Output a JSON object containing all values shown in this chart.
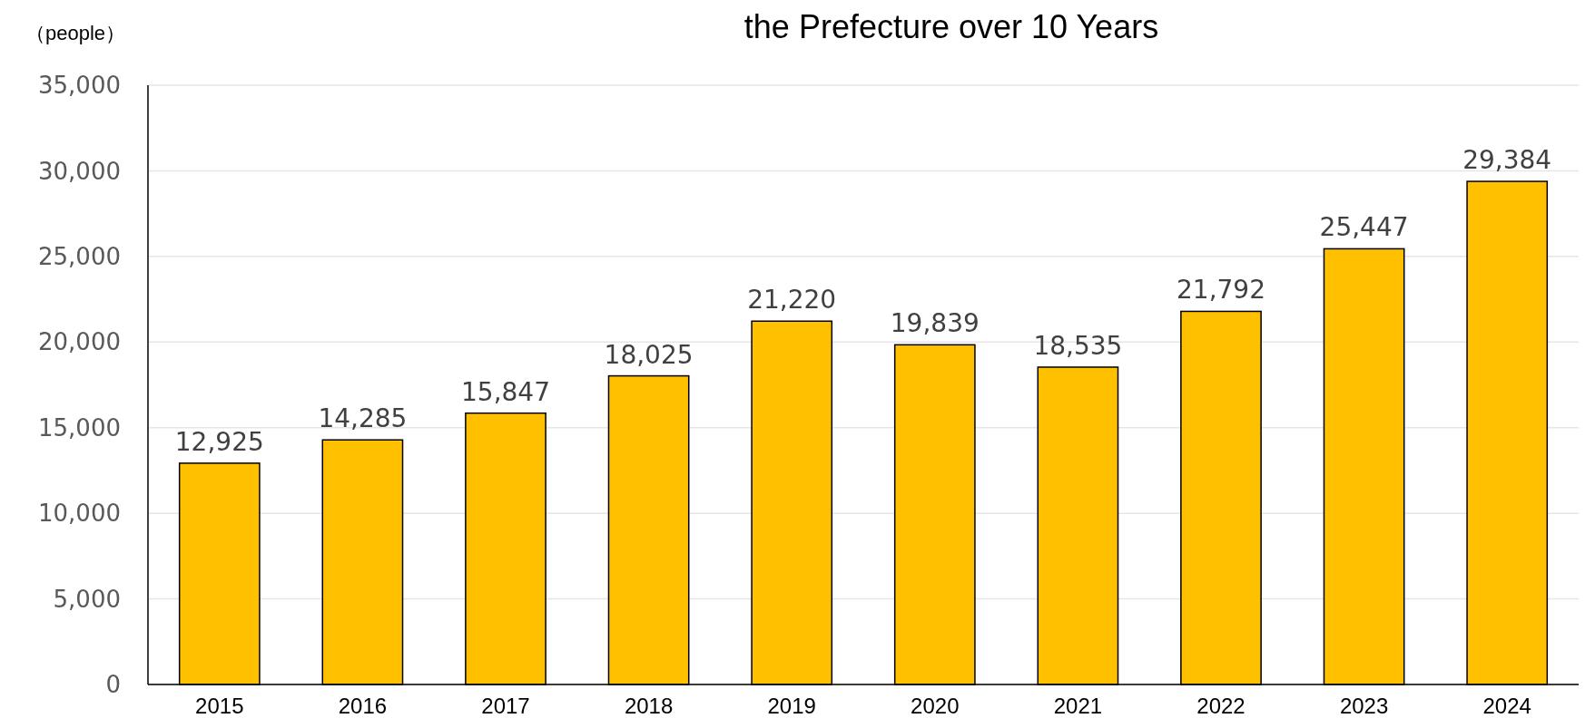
{
  "chart_data": {
    "type": "bar",
    "title": "the Prefecture over 10 Years",
    "ylabel": "（people）",
    "categories": [
      "2015",
      "2016",
      "2017",
      "2018",
      "2019",
      "2020",
      "2021",
      "2022",
      "2023",
      "2024"
    ],
    "values": [
      12925,
      14285,
      15847,
      18025,
      21220,
      19839,
      18535,
      21792,
      25447,
      29384
    ],
    "color": "#ffc000",
    "ylim": [
      0,
      35000
    ],
    "yticks": [
      {
        "value": 0,
        "label": "0"
      },
      {
        "value": 5000,
        "label": "5,000"
      },
      {
        "value": 10000,
        "label": "10,000"
      },
      {
        "value": 15000,
        "label": "15,000"
      },
      {
        "value": 20000,
        "label": "20,000"
      },
      {
        "value": 25000,
        "label": "25,000"
      },
      {
        "value": 30000,
        "label": "30,000"
      },
      {
        "value": 35000,
        "label": "35,000"
      }
    ],
    "value_labels": [
      "12,925",
      "14,285",
      "15,847",
      "18,025",
      "21,220",
      "19,839",
      "18,535",
      "21,792",
      "25,447",
      "29,384"
    ],
    "grid": "y"
  }
}
